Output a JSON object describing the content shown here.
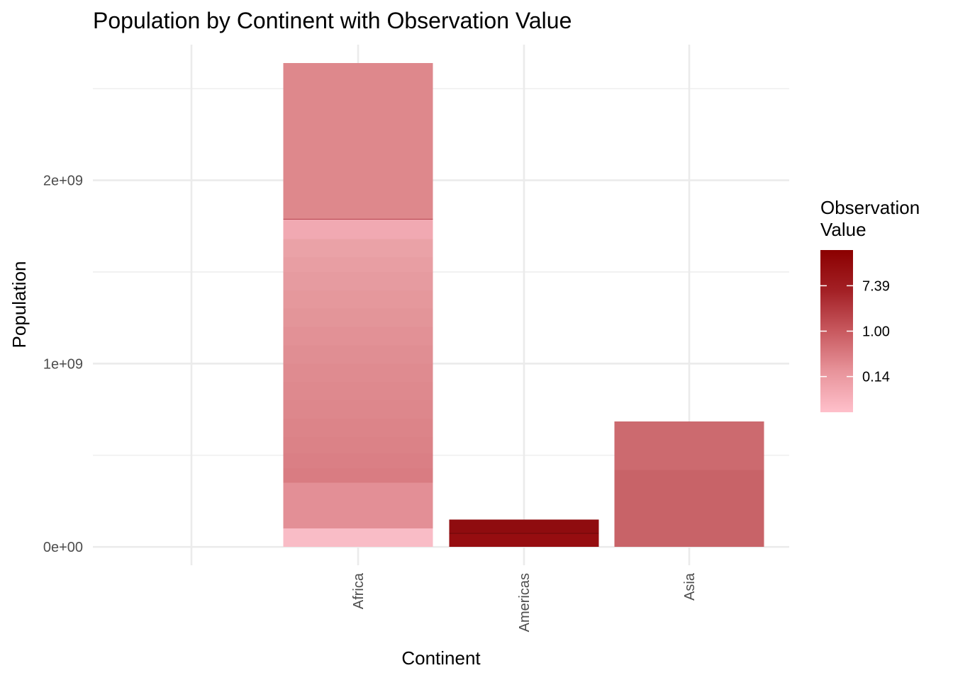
{
  "chart_data": {
    "type": "bar",
    "stacked": true,
    "title": "Population by Continent with Observation Value",
    "xlabel": "Continent",
    "ylabel": "Population",
    "categories": [
      "",
      "Africa",
      "Americas",
      "Asia"
    ],
    "ylim": [
      -100000000,
      2740000000
    ],
    "y_ticks": [
      {
        "value": 0,
        "label": "0e+00"
      },
      {
        "value": 1000000000,
        "label": "1e+09"
      },
      {
        "value": 2000000000,
        "label": "2e+09"
      }
    ],
    "y_minor_ticks": [
      500000000,
      1500000000,
      2500000000
    ],
    "grid": true,
    "tick_label_rotation": "vertical",
    "segments": [
      {
        "category": "Africa",
        "bottom": 0,
        "top": 100000000,
        "color": "#f9bcc6"
      },
      {
        "category": "Africa",
        "bottom": 100000000,
        "top": 350000000,
        "color": "#e38f96"
      },
      {
        "category": "Africa",
        "bottom": 350000000,
        "top": 430000000,
        "color": "#d97c82"
      },
      {
        "category": "Africa",
        "bottom": 430000000,
        "top": 510000000,
        "color": "#da7f85"
      },
      {
        "category": "Africa",
        "bottom": 510000000,
        "top": 600000000,
        "color": "#db8287"
      },
      {
        "category": "Africa",
        "bottom": 600000000,
        "top": 700000000,
        "color": "#dc8489"
      },
      {
        "category": "Africa",
        "bottom": 700000000,
        "top": 800000000,
        "color": "#dd878c"
      },
      {
        "category": "Africa",
        "bottom": 800000000,
        "top": 900000000,
        "color": "#de898e"
      },
      {
        "category": "Africa",
        "bottom": 900000000,
        "top": 1000000000,
        "color": "#df8b90"
      },
      {
        "category": "Africa",
        "bottom": 1000000000,
        "top": 1100000000,
        "color": "#e08e93"
      },
      {
        "category": "Africa",
        "bottom": 1100000000,
        "top": 1200000000,
        "color": "#e29196"
      },
      {
        "category": "Africa",
        "bottom": 1200000000,
        "top": 1300000000,
        "color": "#e39599"
      },
      {
        "category": "Africa",
        "bottom": 1300000000,
        "top": 1400000000,
        "color": "#e5989c"
      },
      {
        "category": "Africa",
        "bottom": 1400000000,
        "top": 1500000000,
        "color": "#e69ba0"
      },
      {
        "category": "Africa",
        "bottom": 1500000000,
        "top": 1580000000,
        "color": "#e89ea3"
      },
      {
        "category": "Africa",
        "bottom": 1580000000,
        "top": 1680000000,
        "color": "#eaa2a7"
      },
      {
        "category": "Africa",
        "bottom": 1680000000,
        "top": 1785000000,
        "color": "#f1a9b2"
      },
      {
        "category": "Africa",
        "bottom": 1785000000,
        "top": 1790000000,
        "color": "#b8454e"
      },
      {
        "category": "Africa",
        "bottom": 1790000000,
        "top": 2640000000,
        "color": "#de888c"
      },
      {
        "category": "Americas",
        "bottom": 0,
        "top": 70000000,
        "color": "#960d10"
      },
      {
        "category": "Americas",
        "bottom": 70000000,
        "top": 77000000,
        "color": "#7f0a0c"
      },
      {
        "category": "Americas",
        "bottom": 77000000,
        "top": 150000000,
        "color": "#8f0c0f"
      },
      {
        "category": "Asia",
        "bottom": 0,
        "top": 420000000,
        "color": "#c86368"
      },
      {
        "category": "Asia",
        "bottom": 420000000,
        "top": 685000000,
        "color": "#cc6a6f"
      }
    ],
    "legend": {
      "title_lines": [
        "Observation",
        "Value"
      ],
      "type": "colorbar",
      "scale": "log",
      "placement": "right",
      "gradient_colors": [
        "#ffc0cb",
        "#e8949b",
        "#c8595f",
        "#a32025",
        "#8b0000"
      ],
      "ticks": [
        {
          "label": "7.39",
          "position": 0.22
        },
        {
          "label": "1.00",
          "position": 0.5
        },
        {
          "label": "0.14",
          "position": 0.78
        }
      ]
    }
  }
}
